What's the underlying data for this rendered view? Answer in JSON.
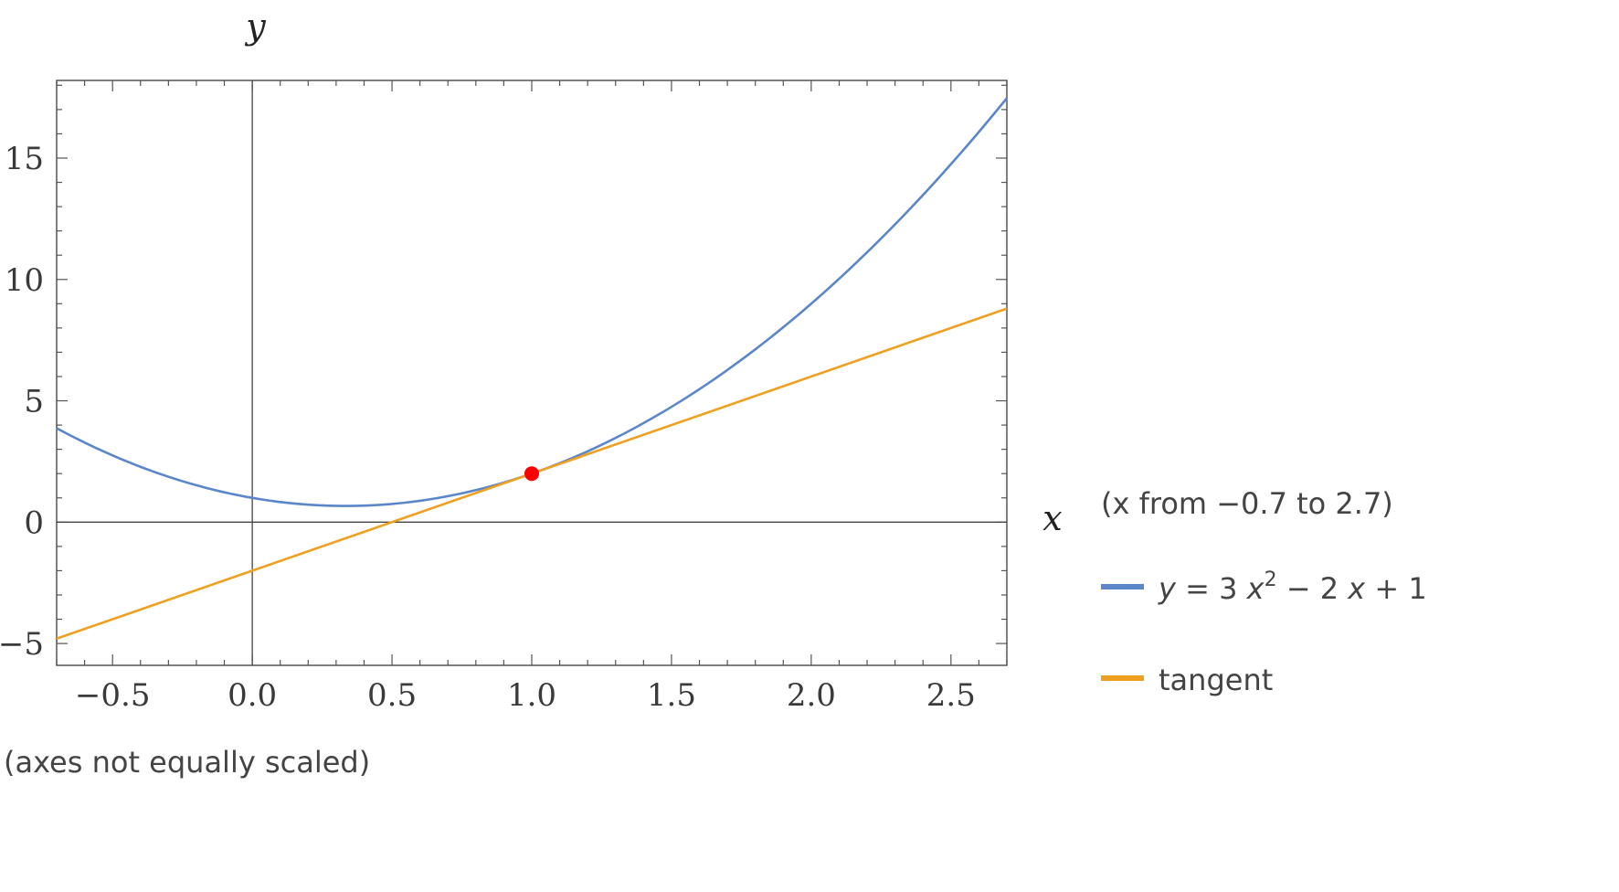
{
  "chart_data": {
    "type": "line",
    "xlabel": "x",
    "ylabel": "y",
    "xlim": [
      -0.7,
      2.7
    ],
    "ylim": [
      -5.9,
      18.2
    ],
    "x_ticks": [
      -0.5,
      0.0,
      0.5,
      1.0,
      1.5,
      2.0,
      2.5
    ],
    "x_tick_labels": [
      "−0.5",
      "0.0",
      "0.5",
      "1.0",
      "1.5",
      "2.0",
      "2.5"
    ],
    "y_ticks": [
      -5,
      0,
      5,
      10,
      15
    ],
    "y_tick_labels": [
      "−5",
      "0",
      "5",
      "10",
      "15"
    ],
    "domain_note": "(x from −0.7 to 2.7)",
    "scale_note": "(axes not equally scaled)",
    "series": [
      {
        "name": "y = 3 x^2 − 2 x + 1",
        "legend_label": {
          "lhs": "y",
          "eq": " = 3 ",
          "var1": "x",
          "exp": "2",
          "rest": " − 2 ",
          "var2": "x",
          "tail": " + 1"
        },
        "color": "#5b86c9",
        "x": [
          -0.7,
          -0.6,
          -0.5,
          -0.4,
          -0.3,
          -0.2,
          -0.1,
          0.0,
          0.1,
          0.2,
          0.3,
          0.4,
          0.5,
          0.6,
          0.7,
          0.8,
          0.9,
          1.0,
          1.1,
          1.2,
          1.3,
          1.4,
          1.5,
          1.6,
          1.7,
          1.8,
          1.9,
          2.0,
          2.1,
          2.2,
          2.3,
          2.4,
          2.5,
          2.6,
          2.7
        ],
        "y": [
          3.87,
          3.28,
          2.75,
          2.28,
          1.87,
          1.52,
          1.23,
          1.0,
          0.83,
          0.72,
          0.67,
          0.68,
          0.75,
          0.88,
          1.07,
          1.32,
          1.63,
          2.0,
          2.43,
          2.92,
          3.47,
          4.08,
          4.75,
          5.48,
          6.27,
          7.12,
          8.03,
          9.0,
          10.03,
          11.12,
          12.27,
          13.48,
          14.75,
          16.08,
          17.47
        ]
      },
      {
        "name": "tangent",
        "legend_label": {
          "text": "tangent"
        },
        "color": "#f0a020",
        "x": [
          -0.7,
          2.7
        ],
        "y": [
          -4.8,
          8.8
        ]
      }
    ],
    "points": [
      {
        "x": 1.0,
        "y": 2.0,
        "color": "#ff0000"
      }
    ],
    "grid": false,
    "legend_position": "right"
  }
}
